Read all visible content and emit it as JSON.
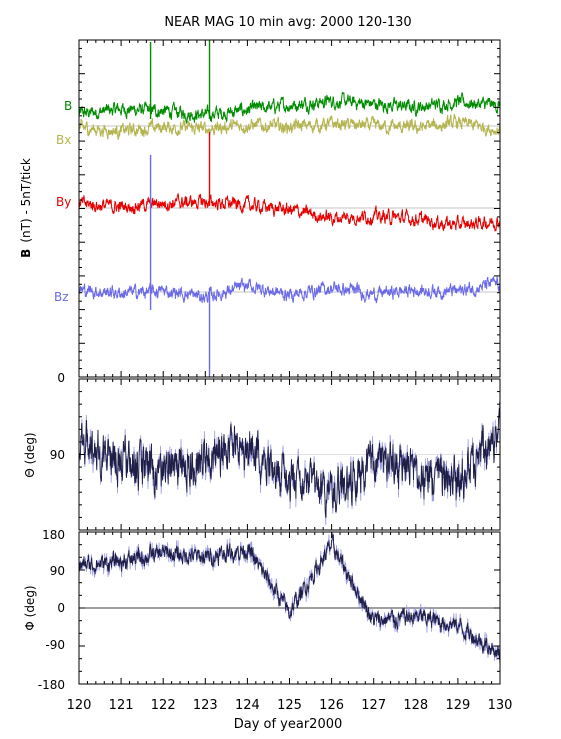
{
  "title": "NEAR MAG 10 min avg: 2000 120-130",
  "xlabel": "Day of year2000",
  "colors": {
    "B": "#008c00",
    "Bx": "#b4b450",
    "By": "#e60000",
    "Bz": "#6a6ae8",
    "angle": "#1e1e46",
    "angle_light": "#9a9ae6",
    "ref": "#8c8c8c"
  },
  "chart_data": [
    {
      "type": "line",
      "panel": "B",
      "ylabel_bold": "B",
      "ylabel_rest": "(nT) - 5nT/tick",
      "x": [
        120,
        121,
        122,
        123,
        124,
        125,
        126,
        127,
        128,
        129,
        130
      ],
      "xlim": [
        120,
        130
      ],
      "ylim_labels": [
        "0"
      ],
      "series": [
        {
          "name": "B",
          "values": [
            0.3,
            0.8,
            0.6,
            0.2,
            0.7,
            1.2,
            1.6,
            1.3,
            1.0,
            1.5,
            1.1
          ]
        },
        {
          "name": "Bx",
          "values": [
            -0.2,
            -0.5,
            -0.1,
            -0.3,
            0.1,
            -0.1,
            0.2,
            0.0,
            -0.2,
            0.3,
            -0.4
          ]
        },
        {
          "name": "By",
          "values": [
            0.4,
            0.1,
            0.5,
            0.6,
            0.3,
            -0.2,
            -1.0,
            -0.8,
            -1.1,
            -1.7,
            -1.3
          ]
        },
        {
          "name": "Bz",
          "values": [
            0.2,
            -0.1,
            0.1,
            -0.5,
            0.6,
            -0.3,
            0.4,
            -0.2,
            0.2,
            0.1,
            0.9
          ]
        }
      ],
      "spikes": [
        {
          "series": "B",
          "x": 121.7
        },
        {
          "series": "B",
          "x": 123.1
        },
        {
          "series": "Bz",
          "x": 121.7
        },
        {
          "series": "Bz",
          "x": 123.1
        }
      ]
    },
    {
      "type": "line",
      "panel": "Theta",
      "ylabel": "Θ (deg)",
      "x": [
        120,
        121,
        122,
        123,
        124,
        125,
        126,
        127,
        128,
        129,
        130
      ],
      "xlim": [
        120,
        130
      ],
      "ylim": [
        0,
        180
      ],
      "yticklabels": [
        "0",
        "90"
      ],
      "values": [
        70,
        100,
        110,
        95,
        80,
        120,
        140,
        100,
        110,
        120,
        70
      ]
    },
    {
      "type": "line",
      "panel": "Phi",
      "ylabel": "Φ (deg)",
      "x": [
        120,
        121,
        122,
        123,
        124,
        125,
        126,
        127,
        128,
        129,
        130
      ],
      "xlim": [
        120,
        130
      ],
      "ylim": [
        -180,
        180
      ],
      "yticklabels": [
        "180",
        "90",
        "0",
        "-90",
        "-180"
      ],
      "xticklabels": [
        "120",
        "121",
        "122",
        "123",
        "124",
        "125",
        "126",
        "127",
        "128",
        "129",
        "130"
      ],
      "values": [
        100,
        110,
        130,
        120,
        140,
        -10,
        150,
        -30,
        -20,
        -40,
        -110
      ]
    }
  ]
}
